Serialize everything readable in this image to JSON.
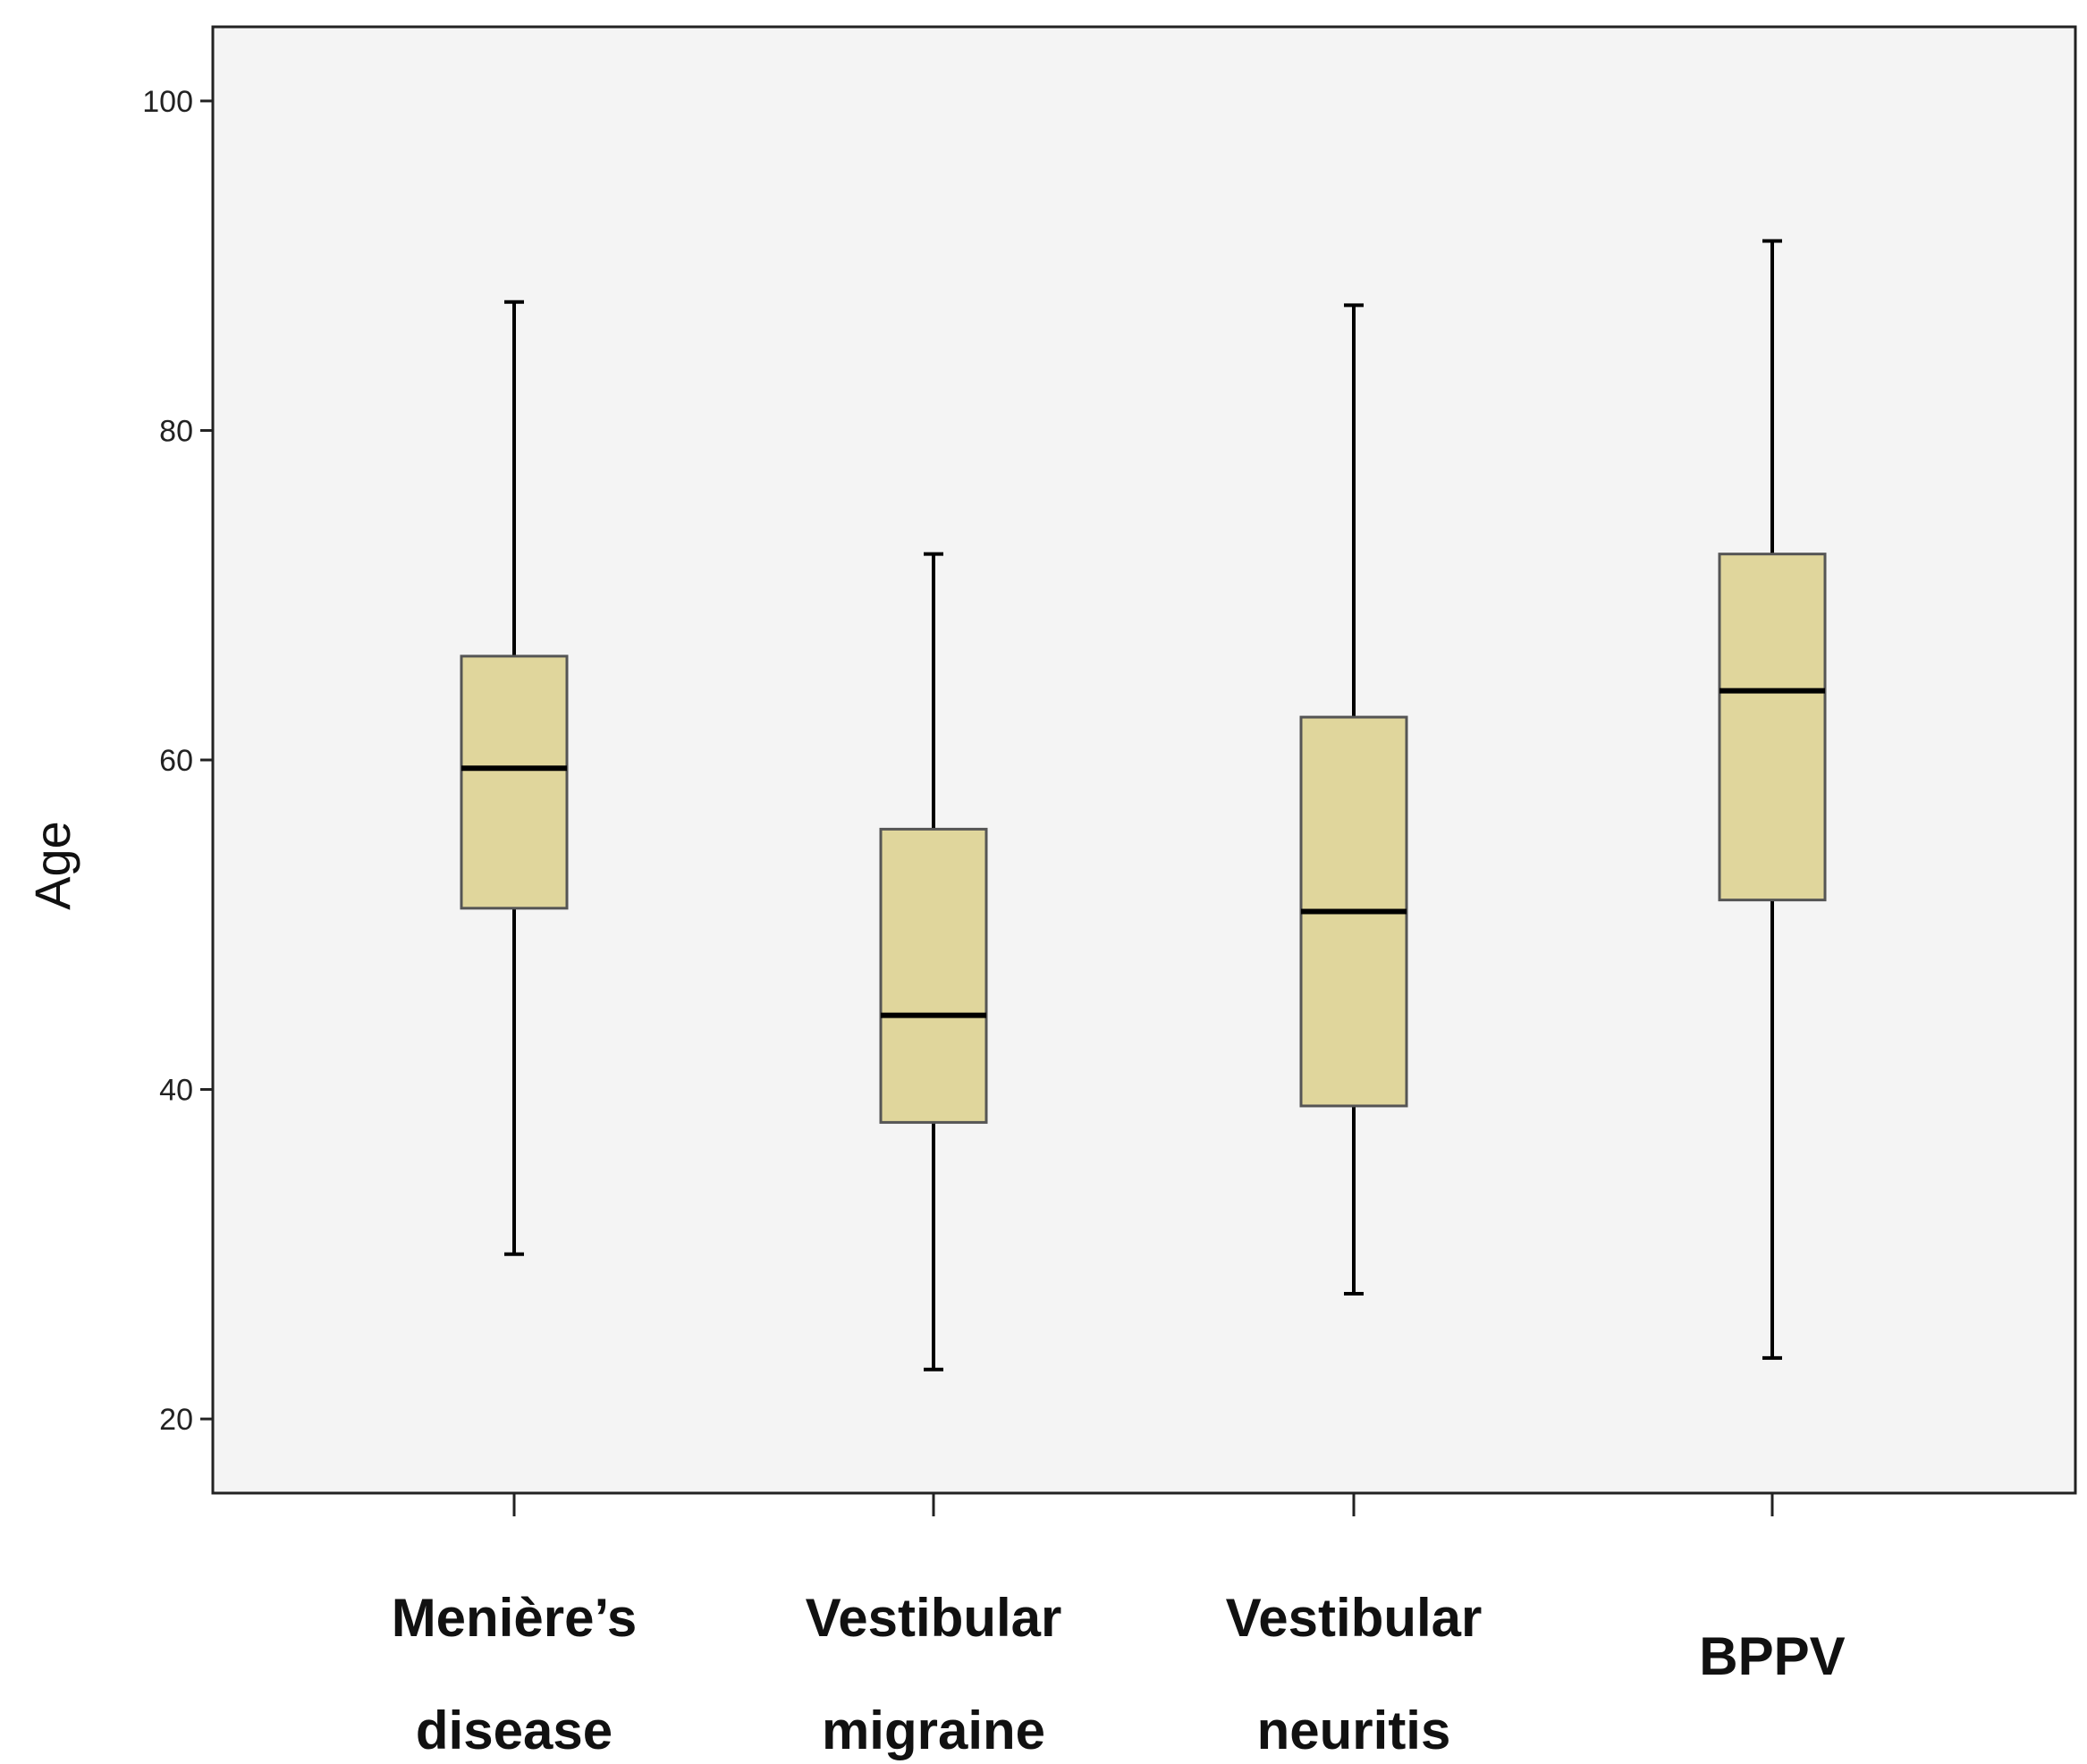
{
  "chart_data": {
    "type": "boxplot",
    "title": "",
    "xlabel": "",
    "ylabel": "Age",
    "ylim": [
      15.5,
      104.5
    ],
    "yticks": [
      20,
      40,
      60,
      80,
      100
    ],
    "categories": [
      [
        "Menière’s",
        "disease"
      ],
      [
        "Vestibular",
        "migraine"
      ],
      [
        "Vestibular",
        "neuritis"
      ],
      [
        "BPPV"
      ]
    ],
    "boxes": [
      {
        "min": 30,
        "q1": 51,
        "median": 59.5,
        "q3": 66.3,
        "max": 87.8
      },
      {
        "min": 23,
        "q1": 38,
        "median": 44.5,
        "q3": 55.8,
        "max": 72.5
      },
      {
        "min": 27.6,
        "q1": 39,
        "median": 50.8,
        "q3": 62.6,
        "max": 87.6
      },
      {
        "min": 23.7,
        "q1": 51.5,
        "median": 64.2,
        "q3": 72.5,
        "max": 91.5
      }
    ],
    "grid": false,
    "legend": "none",
    "colors": {
      "plot_background": "#f4f4f4",
      "box_fill": "#e0d69c",
      "box_stroke": "#555555",
      "median": "#000000",
      "whisker": "#000000",
      "axis": "#222222"
    }
  }
}
